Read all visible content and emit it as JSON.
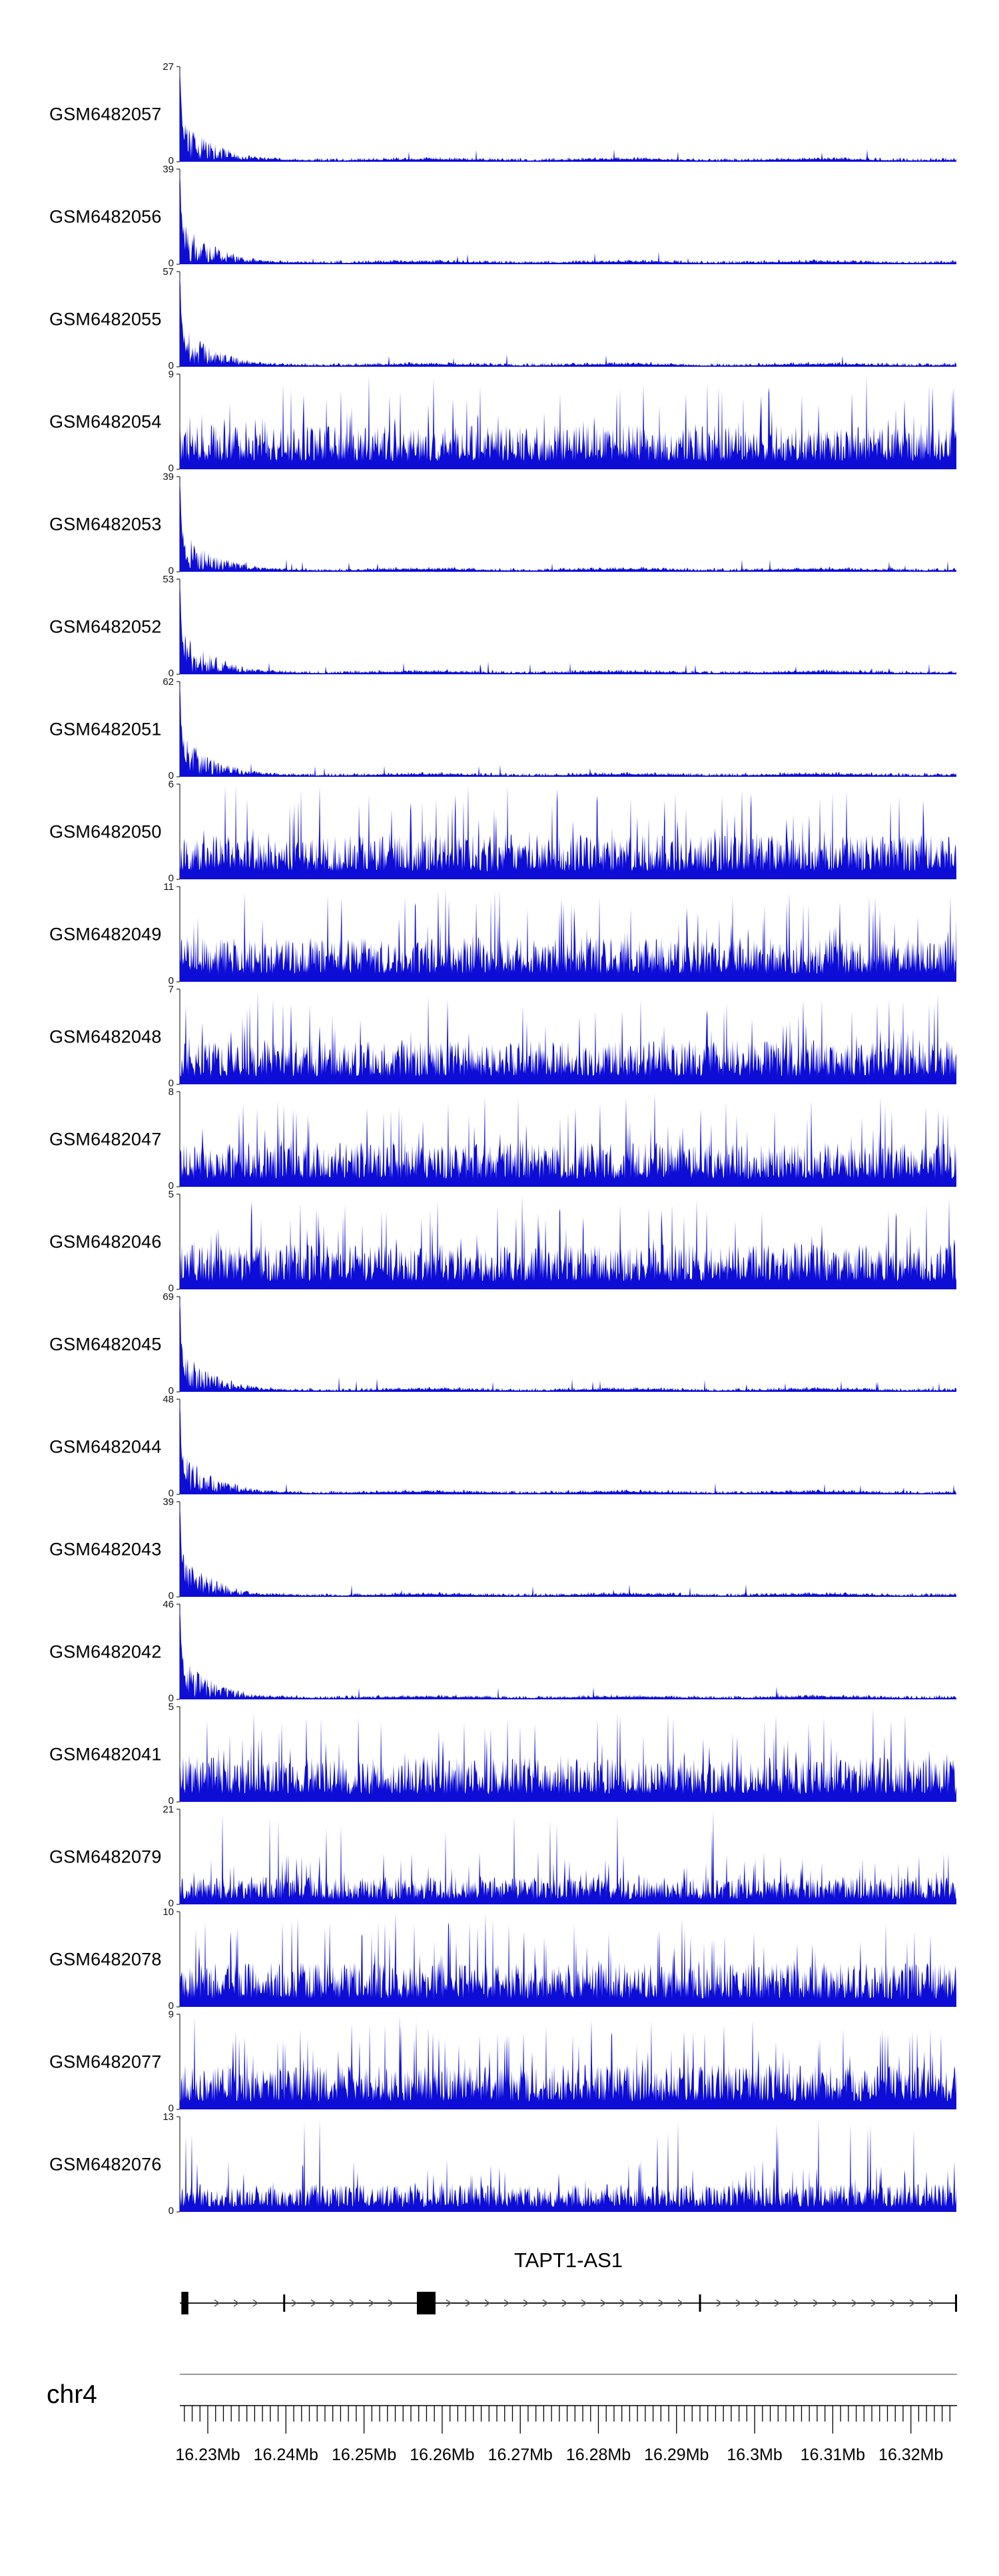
{
  "chart_data": {
    "type": "area",
    "subtype": "genome-browser-read-coverage-tracks",
    "title": "",
    "chromosome": "chr4",
    "region_mb": [
      16.226,
      16.326
    ],
    "x_axis": {
      "unit": "Mb",
      "tick_labels": [
        "16.23Mb",
        "16.24Mb",
        "16.25Mb",
        "16.26Mb",
        "16.27Mb",
        "16.28Mb",
        "16.29Mb",
        "16.3Mb",
        "16.31Mb",
        "16.32Mb"
      ],
      "tick_values_mb": [
        16.23,
        16.24,
        16.25,
        16.26,
        16.27,
        16.28,
        16.29,
        16.3,
        16.31,
        16.32
      ],
      "minor_tick_step_mb": 0.001,
      "grid": false
    },
    "signal_color": "#0d0dd6",
    "pattern_legend": {
      "left-spike-decay": "coverage concentrated in a sharp peak at the left edge (~16.226Mb) decaying to a thin noisy baseline across the region",
      "dense": "spiky coverage distributed across the entire displayed region",
      "dense-low": "spiky coverage across the entire region at lower relative amplitude"
    },
    "tracks": [
      {
        "label": "GSM6482057",
        "ymax": 27,
        "ymin": 0,
        "pattern": "left-spike-decay"
      },
      {
        "label": "GSM6482056",
        "ymax": 39,
        "ymin": 0,
        "pattern": "left-spike-decay"
      },
      {
        "label": "GSM6482055",
        "ymax": 57,
        "ymin": 0,
        "pattern": "left-spike-decay"
      },
      {
        "label": "GSM6482054",
        "ymax": 9,
        "ymin": 0,
        "pattern": "dense"
      },
      {
        "label": "GSM6482053",
        "ymax": 39,
        "ymin": 0,
        "pattern": "left-spike-decay"
      },
      {
        "label": "GSM6482052",
        "ymax": 53,
        "ymin": 0,
        "pattern": "left-spike-decay"
      },
      {
        "label": "GSM6482051",
        "ymax": 62,
        "ymin": 0,
        "pattern": "left-spike-decay"
      },
      {
        "label": "GSM6482050",
        "ymax": 6,
        "ymin": 0,
        "pattern": "dense"
      },
      {
        "label": "GSM6482049",
        "ymax": 11,
        "ymin": 0,
        "pattern": "dense"
      },
      {
        "label": "GSM6482048",
        "ymax": 7,
        "ymin": 0,
        "pattern": "dense"
      },
      {
        "label": "GSM6482047",
        "ymax": 8,
        "ymin": 0,
        "pattern": "dense"
      },
      {
        "label": "GSM6482046",
        "ymax": 5,
        "ymin": 0,
        "pattern": "dense"
      },
      {
        "label": "GSM6482045",
        "ymax": 69,
        "ymin": 0,
        "pattern": "left-spike-decay"
      },
      {
        "label": "GSM6482044",
        "ymax": 48,
        "ymin": 0,
        "pattern": "left-spike-decay"
      },
      {
        "label": "GSM6482043",
        "ymax": 39,
        "ymin": 0,
        "pattern": "left-spike-decay"
      },
      {
        "label": "GSM6482042",
        "ymax": 46,
        "ymin": 0,
        "pattern": "left-spike-decay"
      },
      {
        "label": "GSM6482041",
        "ymax": 5,
        "ymin": 0,
        "pattern": "dense"
      },
      {
        "label": "GSM6482079",
        "ymax": 21,
        "ymin": 0,
        "pattern": "dense-low"
      },
      {
        "label": "GSM6482078",
        "ymax": 10,
        "ymin": 0,
        "pattern": "dense"
      },
      {
        "label": "GSM6482077",
        "ymax": 9,
        "ymin": 0,
        "pattern": "dense"
      },
      {
        "label": "GSM6482076",
        "ymax": 13,
        "ymin": 0,
        "pattern": "dense-low"
      }
    ],
    "gene_track": {
      "name": "TAPT1-AS1",
      "direction": "right",
      "features": [
        {
          "type": "exon",
          "start_frac": 0.002,
          "width_frac": 0.009
        },
        {
          "type": "boundary",
          "start_frac": 0.133
        },
        {
          "type": "exon",
          "start_frac": 0.305,
          "width_frac": 0.024
        },
        {
          "type": "boundary",
          "start_frac": 0.668
        },
        {
          "type": "boundary",
          "start_frac": 1.0
        }
      ]
    }
  }
}
